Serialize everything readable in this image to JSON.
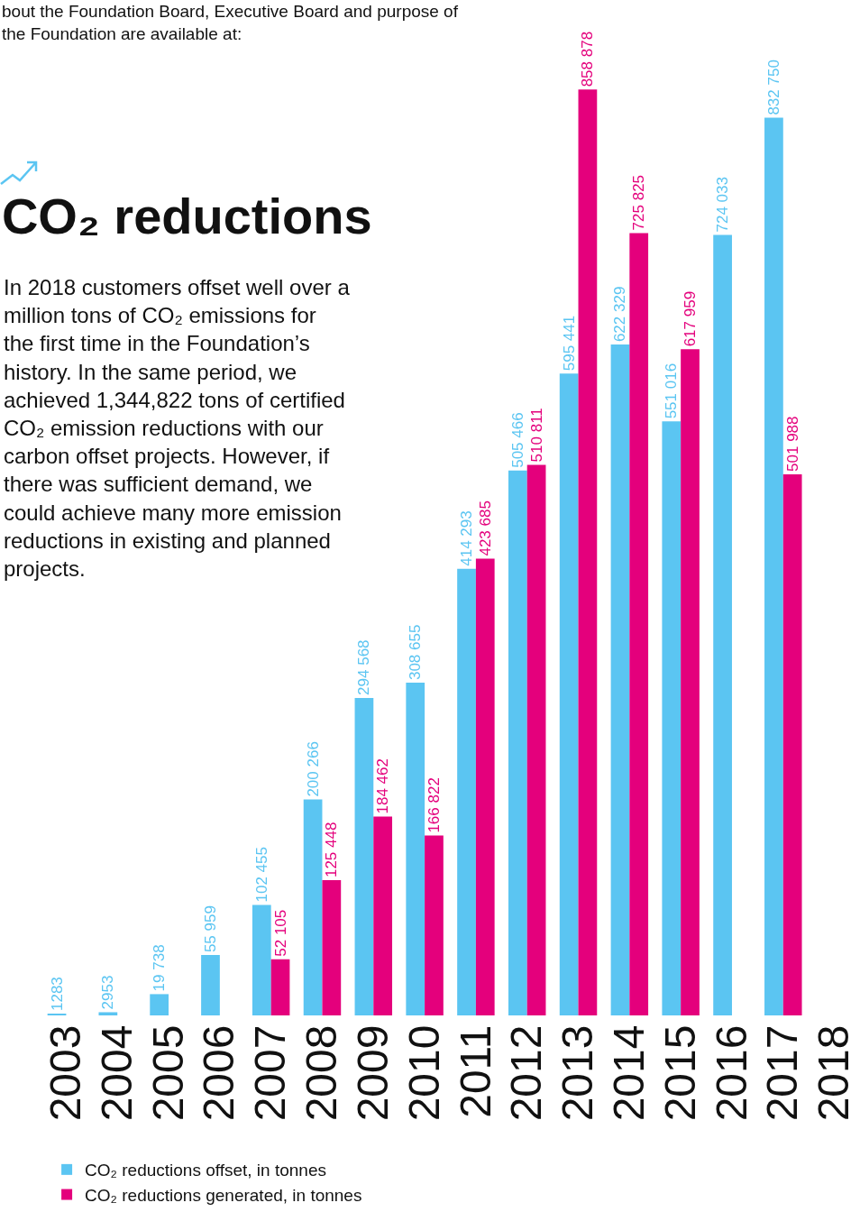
{
  "chart_data": {
    "type": "bar",
    "title": "CO₂ reductions",
    "annotations": [
      "bout the Foundation Board, Executive Board and purpose of the Foundation are available at:",
      "In 2018 customers offset well over a million tons of CO₂ emissions for the first time in the Foundation’s history. In the same period, we achieved 1,344,822 tons of certified CO₂ emission reductions with our carbon offset projects. However, if there was sufficient demand, we could achieve many more emission reductions in existing and planned projects."
    ],
    "categories": [
      "2003",
      "2004",
      "2005",
      "2006",
      "2007",
      "2008",
      "2009",
      "2010",
      "2011",
      "2012",
      "2013",
      "2014",
      "2015",
      "2016",
      "2017",
      "2018"
    ],
    "ylim": [
      0,
      942000
    ],
    "tick_labels": "x",
    "legend": "bottom",
    "grid": false,
    "series": [
      {
        "name": "CO₂ reductions offset, in tonnes",
        "color": "#5bc5f2",
        "values": [
          1283,
          2953,
          19738,
          55959,
          102455,
          200266,
          294568,
          308655,
          414293,
          505466,
          595441,
          622329,
          551016,
          724033,
          832750,
          null
        ],
        "value_labels": [
          "1283",
          "2953",
          "19 738",
          "55 959",
          "102 455",
          "200 266",
          "294 568",
          "308 655",
          "414 293",
          "505 466",
          "595 441",
          "622 329",
          "551 016",
          "724 033",
          "832 750",
          null
        ]
      },
      {
        "name": "CO₂ reductions generated, in tonnes",
        "color": "#e4007c",
        "values": [
          null,
          null,
          null,
          null,
          52105,
          125448,
          184462,
          166822,
          423685,
          510811,
          858878,
          725825,
          617959,
          null,
          501988,
          null
        ],
        "value_labels": [
          null,
          null,
          null,
          null,
          "52 105",
          "125 448",
          "184 462",
          "166 822",
          "423 685",
          "510 811",
          "858 878",
          "725 825",
          "617 959",
          null,
          "501 988",
          null
        ]
      }
    ]
  }
}
